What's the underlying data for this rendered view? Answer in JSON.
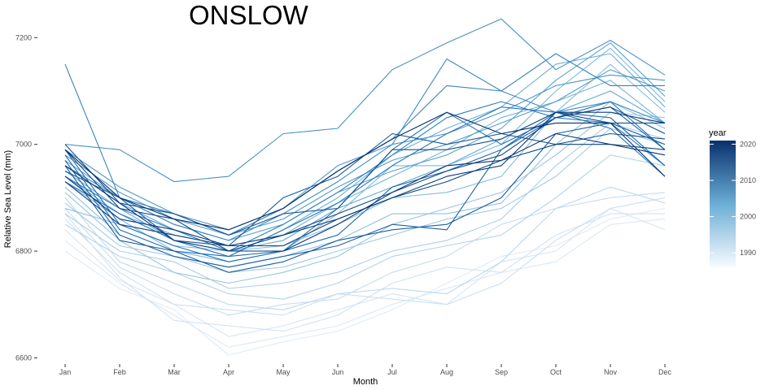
{
  "chart_data": {
    "type": "line",
    "title": "ONSLOW",
    "xlabel": "Month",
    "ylabel": "Relative Sea Level (mm)",
    "categories": [
      "Jan",
      "Feb",
      "Mar",
      "Apr",
      "May",
      "Jun",
      "Jul",
      "Aug",
      "Sep",
      "Oct",
      "Nov",
      "Dec"
    ],
    "ylim": [
      6590,
      7240
    ],
    "yticks": [
      6600,
      6800,
      7000,
      7200
    ],
    "grid": false,
    "legend": {
      "title": "year",
      "position": "right",
      "type": "colorbar",
      "range": [
        1986,
        2021
      ],
      "ticks": [
        1990,
        2000,
        2010,
        2020
      ],
      "low_color": "#f7fbff",
      "high_color": "#08306b"
    },
    "series": [
      {
        "year": 1986,
        "values": [
          6800,
          6730,
          6690,
          6605,
          6630,
          6650,
          6690,
          6740,
          6790,
          6810,
          6860,
          6880
        ]
      },
      {
        "year": 1987,
        "values": [
          6820,
          6740,
          6680,
          6620,
          6640,
          6660,
          6700,
          6730,
          6760,
          6780,
          6850,
          6860
        ]
      },
      {
        "year": 1988,
        "values": [
          6840,
          6745,
          6700,
          6640,
          6660,
          6690,
          6720,
          6700,
          6780,
          6800,
          6880,
          6840
        ]
      },
      {
        "year": 1989,
        "values": [
          6870,
          6750,
          6670,
          6660,
          6650,
          6680,
          6740,
          6770,
          6760,
          6830,
          6870,
          6870
        ]
      },
      {
        "year": 1990,
        "values": [
          6860,
          6760,
          6700,
          6690,
          6680,
          6720,
          6710,
          6700,
          6740,
          6820,
          6880,
          6900
        ]
      },
      {
        "year": 1991,
        "values": [
          6880,
          6770,
          6720,
          6680,
          6700,
          6710,
          6760,
          6790,
          6850,
          6880,
          6900,
          6910
        ]
      },
      {
        "year": 1992,
        "values": [
          6900,
          6780,
          6740,
          6700,
          6690,
          6720,
          6730,
          6720,
          6780,
          6880,
          6920,
          6890
        ]
      },
      {
        "year": 1993,
        "values": [
          6850,
          6790,
          6760,
          6720,
          6710,
          6740,
          6790,
          6810,
          6830,
          6900,
          6980,
          6960
        ]
      },
      {
        "year": 1994,
        "values": [
          6870,
          6800,
          6780,
          6730,
          6740,
          6760,
          6800,
          6820,
          6860,
          6960,
          7040,
          7010
        ]
      },
      {
        "year": 1995,
        "values": [
          6890,
          6810,
          6790,
          6760,
          6770,
          6800,
          6830,
          6860,
          6880,
          6940,
          7030,
          7000
        ]
      },
      {
        "year": 1996,
        "values": [
          6910,
          6820,
          6760,
          6740,
          6760,
          6790,
          6850,
          6880,
          6910,
          6980,
          7060,
          7050
        ]
      },
      {
        "year": 1997,
        "values": [
          6920,
          6830,
          6790,
          6770,
          6790,
          6820,
          6870,
          6870,
          6890,
          7000,
          7080,
          7030
        ]
      },
      {
        "year": 1998,
        "values": [
          6880,
          6850,
          6810,
          6800,
          6810,
          6850,
          6900,
          6910,
          6940,
          7060,
          7150,
          7060
        ]
      },
      {
        "year": 1999,
        "values": [
          6930,
          6860,
          6800,
          6780,
          6800,
          6870,
          6960,
          6960,
          7000,
          7100,
          7180,
          7080
        ]
      },
      {
        "year": 2000,
        "values": [
          6940,
          6870,
          6830,
          6810,
          6830,
          6890,
          6940,
          6990,
          7050,
          7080,
          7120,
          7040
        ]
      },
      {
        "year": 2001,
        "values": [
          6950,
          6880,
          6820,
          6790,
          6840,
          6900,
          6980,
          7030,
          7070,
          7150,
          7170,
          7070
        ]
      },
      {
        "year": 2002,
        "values": [
          6960,
          6890,
          6840,
          6800,
          6820,
          6880,
          6920,
          6960,
          7010,
          7060,
          7100,
          7040
        ]
      },
      {
        "year": 2003,
        "values": [
          6970,
          6900,
          6850,
          6820,
          6850,
          6910,
          6950,
          6980,
          7030,
          7120,
          7190,
          7090
        ]
      },
      {
        "year": 2004,
        "values": [
          6980,
          6910,
          6860,
          6830,
          6860,
          6920,
          6970,
          7000,
          7040,
          7080,
          7140,
          7100
        ]
      },
      {
        "year": 2005,
        "values": [
          6990,
          6920,
          6870,
          6840,
          6880,
          6960,
          7000,
          7020,
          7060,
          7110,
          7130,
          7120
        ]
      },
      {
        "year": 2006,
        "values": [
          7000,
          6990,
          6930,
          6940,
          7020,
          7030,
          7140,
          7190,
          7235,
          7140,
          7195,
          7130
        ]
      },
      {
        "year": 2007,
        "values": [
          6960,
          6900,
          6850,
          6820,
          6870,
          6930,
          7000,
          7160,
          7100,
          7060,
          7080,
          7040
        ]
      },
      {
        "year": 2008,
        "values": [
          7150,
          6900,
          6870,
          6830,
          6880,
          6950,
          7010,
          7110,
          7100,
          7170,
          7110,
          7110
        ]
      },
      {
        "year": 2009,
        "values": [
          6940,
          6880,
          6840,
          6800,
          6850,
          6910,
          6980,
          7050,
          7080,
          7050,
          7040,
          6960
        ]
      },
      {
        "year": 2010,
        "values": [
          6930,
          6870,
          6820,
          6790,
          6840,
          6890,
          6960,
          7020,
          7070,
          7060,
          7030,
          6940
        ]
      },
      {
        "year": 2011,
        "values": [
          6990,
          6850,
          6810,
          6780,
          6800,
          6880,
          6990,
          7060,
          7000,
          7050,
          7080,
          6990
        ]
      },
      {
        "year": 2012,
        "values": [
          6980,
          6840,
          6800,
          6790,
          6800,
          6830,
          6920,
          6950,
          6990,
          7060,
          7050,
          6960
        ]
      },
      {
        "year": 2013,
        "values": [
          6970,
          6830,
          6790,
          6770,
          6790,
          6810,
          6850,
          6840,
          6990,
          7050,
          7070,
          6990
        ]
      },
      {
        "year": 2014,
        "values": [
          6960,
          6820,
          6800,
          6760,
          6780,
          6820,
          6840,
          6850,
          6900,
          7020,
          7040,
          7000
        ]
      },
      {
        "year": 2015,
        "values": [
          6950,
          6900,
          6820,
          6810,
          6900,
          6940,
          7020,
          7000,
          7020,
          7000,
          7020,
          7010
        ]
      },
      {
        "year": 2016,
        "values": [
          7000,
          6890,
          6870,
          6830,
          6870,
          6880,
          6990,
          6990,
          7010,
          7060,
          7040,
          7040
        ]
      },
      {
        "year": 2017,
        "values": [
          6990,
          6880,
          6860,
          6800,
          6830,
          6870,
          6910,
          6950,
          6980,
          7050,
          7070,
          7020
        ]
      },
      {
        "year": 2018,
        "values": [
          6930,
          6850,
          6830,
          6810,
          6810,
          6860,
          6900,
          6930,
          6970,
          7000,
          7000,
          6990
        ]
      },
      {
        "year": 2019,
        "values": [
          6940,
          6860,
          6840,
          6810,
          6830,
          6860,
          6900,
          6940,
          6960,
          7060,
          7060,
          7040
        ]
      },
      {
        "year": 2020,
        "values": [
          6960,
          6890,
          6820,
          6800,
          6800,
          6850,
          6910,
          6960,
          6970,
          7020,
          7000,
          6980
        ]
      },
      {
        "year": 2021,
        "values": [
          6990,
          6900,
          6860,
          6840,
          6880,
          6950,
          7010,
          7060,
          7020,
          7040,
          7040,
          6940
        ]
      }
    ]
  }
}
